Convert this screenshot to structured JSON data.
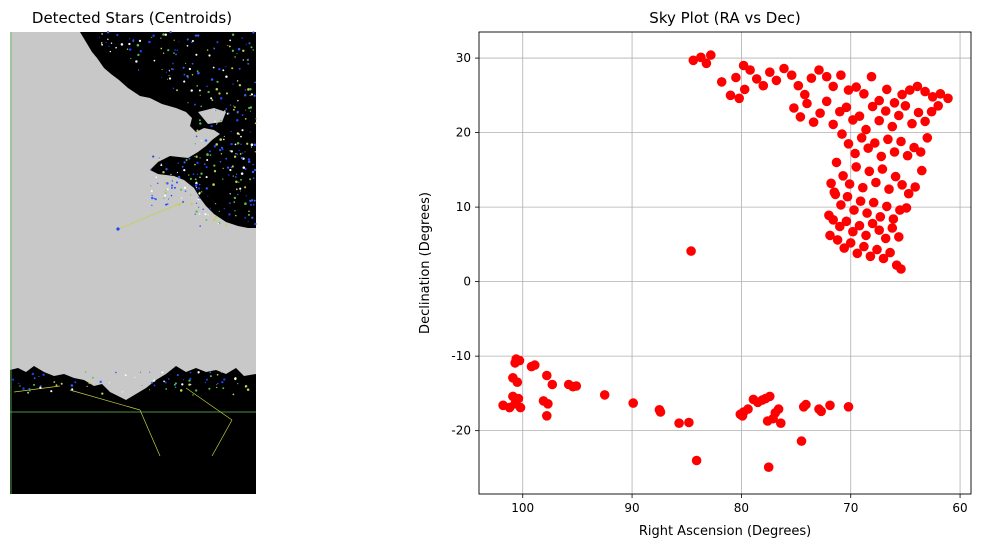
{
  "left_panel": {
    "title": "Detected Stars (Centroids)",
    "description_colors": {
      "sky": "#c8c8c8",
      "ground": "#000000",
      "centroid": "#2040ff",
      "link": "#c8d040",
      "grid": "#60c060"
    }
  },
  "chart_data": {
    "type": "scatter",
    "title": "Sky Plot (RA vs Dec)",
    "xlabel": "Right Ascension (Degrees)",
    "ylabel": "Declination (Degrees)",
    "xlim": [
      104,
      59
    ],
    "ylim": [
      -28.5,
      33.5
    ],
    "x_inverted": true,
    "grid": true,
    "color": "#ff0000",
    "xticks": [
      100,
      90,
      80,
      70,
      60
    ],
    "yticks": [
      -20,
      -10,
      0,
      10,
      20,
      30
    ],
    "points": [
      [
        84.4,
        29.7
      ],
      [
        83.7,
        30.1
      ],
      [
        82.8,
        30.4
      ],
      [
        83.2,
        29.3
      ],
      [
        81.8,
        26.8
      ],
      [
        81.0,
        25.0
      ],
      [
        80.2,
        24.6
      ],
      [
        79.7,
        25.8
      ],
      [
        80.5,
        27.4
      ],
      [
        79.8,
        29.0
      ],
      [
        79.2,
        28.4
      ],
      [
        78.6,
        27.2
      ],
      [
        78.0,
        26.3
      ],
      [
        77.4,
        28.1
      ],
      [
        76.8,
        27.0
      ],
      [
        76.1,
        28.6
      ],
      [
        75.4,
        27.7
      ],
      [
        74.8,
        26.3
      ],
      [
        74.2,
        25.1
      ],
      [
        73.6,
        27.3
      ],
      [
        72.9,
        28.4
      ],
      [
        72.2,
        27.5
      ],
      [
        71.6,
        26.2
      ],
      [
        70.9,
        27.7
      ],
      [
        70.2,
        25.7
      ],
      [
        69.5,
        26.1
      ],
      [
        68.8,
        25.2
      ],
      [
        68.1,
        27.5
      ],
      [
        67.4,
        24.3
      ],
      [
        66.7,
        25.8
      ],
      [
        66.0,
        24.0
      ],
      [
        65.3,
        25.1
      ],
      [
        64.6,
        25.7
      ],
      [
        63.9,
        26.2
      ],
      [
        63.2,
        25.5
      ],
      [
        62.5,
        24.8
      ],
      [
        61.8,
        25.2
      ],
      [
        61.1,
        24.6
      ],
      [
        75.2,
        23.3
      ],
      [
        74.6,
        22.1
      ],
      [
        74.0,
        23.9
      ],
      [
        73.4,
        21.4
      ],
      [
        72.8,
        22.6
      ],
      [
        72.2,
        24.2
      ],
      [
        71.6,
        21.1
      ],
      [
        71.0,
        22.8
      ],
      [
        70.4,
        23.4
      ],
      [
        69.8,
        21.7
      ],
      [
        69.2,
        22.2
      ],
      [
        68.6,
        20.4
      ],
      [
        68.0,
        23.5
      ],
      [
        67.4,
        21.6
      ],
      [
        66.8,
        22.9
      ],
      [
        66.2,
        20.8
      ],
      [
        65.6,
        22.3
      ],
      [
        65.0,
        23.6
      ],
      [
        64.4,
        21.2
      ],
      [
        63.8,
        22.7
      ],
      [
        63.2,
        21.5
      ],
      [
        62.6,
        22.8
      ],
      [
        62.0,
        23.6
      ],
      [
        70.8,
        19.8
      ],
      [
        70.2,
        18.5
      ],
      [
        69.6,
        17.2
      ],
      [
        69.0,
        19.3
      ],
      [
        68.4,
        17.9
      ],
      [
        67.8,
        18.6
      ],
      [
        67.2,
        16.8
      ],
      [
        66.6,
        19.1
      ],
      [
        66.0,
        17.4
      ],
      [
        65.4,
        18.8
      ],
      [
        64.8,
        16.9
      ],
      [
        64.2,
        18.0
      ],
      [
        63.6,
        17.4
      ],
      [
        63.0,
        19.3
      ],
      [
        71.3,
        16.0
      ],
      [
        70.7,
        14.2
      ],
      [
        70.1,
        13.1
      ],
      [
        69.5,
        15.4
      ],
      [
        68.9,
        12.6
      ],
      [
        68.3,
        14.8
      ],
      [
        67.7,
        13.3
      ],
      [
        67.1,
        15.1
      ],
      [
        66.5,
        12.4
      ],
      [
        65.9,
        14.1
      ],
      [
        65.3,
        13.0
      ],
      [
        64.7,
        11.8
      ],
      [
        64.1,
        12.7
      ],
      [
        63.5,
        14.9
      ],
      [
        71.8,
        13.2
      ],
      [
        71.4,
        11.7
      ],
      [
        70.9,
        10.3
      ],
      [
        70.3,
        11.4
      ],
      [
        69.7,
        9.6
      ],
      [
        69.1,
        10.8
      ],
      [
        68.5,
        9.2
      ],
      [
        67.9,
        10.6
      ],
      [
        67.3,
        8.7
      ],
      [
        66.7,
        10.1
      ],
      [
        66.1,
        8.4
      ],
      [
        65.5,
        9.6
      ],
      [
        64.9,
        9.9
      ],
      [
        71.6,
        8.3
      ],
      [
        71.0,
        7.4
      ],
      [
        70.4,
        8.1
      ],
      [
        69.8,
        6.7
      ],
      [
        69.2,
        7.5
      ],
      [
        68.6,
        6.2
      ],
      [
        68.0,
        7.8
      ],
      [
        67.4,
        6.9
      ],
      [
        66.8,
        5.8
      ],
      [
        66.2,
        7.2
      ],
      [
        65.6,
        6.0
      ],
      [
        71.9,
        6.2
      ],
      [
        71.2,
        5.6
      ],
      [
        70.6,
        4.5
      ],
      [
        70.0,
        5.2
      ],
      [
        69.4,
        3.8
      ],
      [
        68.8,
        4.7
      ],
      [
        68.2,
        3.4
      ],
      [
        67.6,
        4.3
      ],
      [
        67.0,
        3.1
      ],
      [
        66.4,
        3.9
      ],
      [
        65.8,
        2.2
      ],
      [
        65.4,
        1.7
      ],
      [
        72.0,
        8.9
      ],
      [
        71.5,
        12.0
      ],
      [
        84.6,
        4.1
      ],
      [
        101.8,
        -16.6
      ],
      [
        101.2,
        -16.9
      ],
      [
        100.7,
        -16.4
      ],
      [
        100.2,
        -16.9
      ],
      [
        100.9,
        -12.9
      ],
      [
        100.5,
        -13.5
      ],
      [
        100.9,
        -15.4
      ],
      [
        100.4,
        -15.7
      ],
      [
        100.6,
        -10.4
      ],
      [
        100.3,
        -10.6
      ],
      [
        100.7,
        -10.9
      ],
      [
        99.2,
        -11.4
      ],
      [
        98.9,
        -11.2
      ],
      [
        97.8,
        -12.6
      ],
      [
        98.1,
        -16.0
      ],
      [
        97.7,
        -16.4
      ],
      [
        97.8,
        -18.0
      ],
      [
        97.3,
        -13.8
      ],
      [
        95.8,
        -13.8
      ],
      [
        95.4,
        -14.1
      ],
      [
        95.1,
        -14.0
      ],
      [
        92.5,
        -15.2
      ],
      [
        89.9,
        -16.3
      ],
      [
        87.5,
        -17.2
      ],
      [
        87.4,
        -17.5
      ],
      [
        85.7,
        -19.0
      ],
      [
        84.8,
        -18.9
      ],
      [
        84.1,
        -24.0
      ],
      [
        80.1,
        -17.8
      ],
      [
        79.8,
        -17.5
      ],
      [
        79.4,
        -17.1
      ],
      [
        78.9,
        -15.8
      ],
      [
        78.5,
        -16.2
      ],
      [
        78.1,
        -15.9
      ],
      [
        77.8,
        -15.7
      ],
      [
        77.4,
        -15.4
      ],
      [
        77.1,
        -18.4
      ],
      [
        77.6,
        -18.7
      ],
      [
        76.9,
        -17.6
      ],
      [
        76.6,
        -17.1
      ],
      [
        76.4,
        -19.0
      ],
      [
        77.5,
        -24.9
      ],
      [
        74.5,
        -21.4
      ],
      [
        74.3,
        -16.8
      ],
      [
        74.1,
        -16.5
      ],
      [
        72.9,
        -17.1
      ],
      [
        72.7,
        -17.4
      ],
      [
        71.9,
        -16.6
      ],
      [
        70.2,
        -16.8
      ],
      [
        79.9,
        -18.0
      ]
    ]
  }
}
